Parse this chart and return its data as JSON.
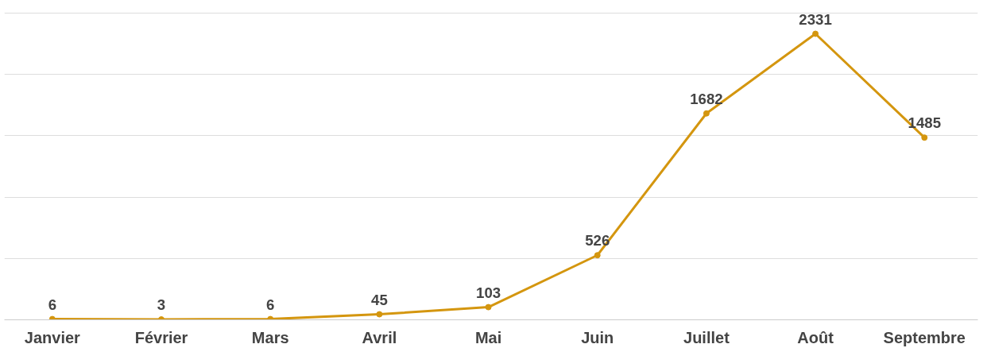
{
  "chart_data": {
    "type": "line",
    "categories": [
      "Janvier",
      "Février",
      "Mars",
      "Avril",
      "Mai",
      "Juin",
      "Juillet",
      "Août",
      "Septembre"
    ],
    "series": [
      {
        "color": "#d4960f",
        "values": [
          6,
          3,
          6,
          45,
          103,
          526,
          1682,
          2331,
          1485
        ]
      }
    ],
    "grid": "y",
    "tick_labels": "x",
    "data_labels": true,
    "marker": "circle",
    "line_style": "solid"
  }
}
